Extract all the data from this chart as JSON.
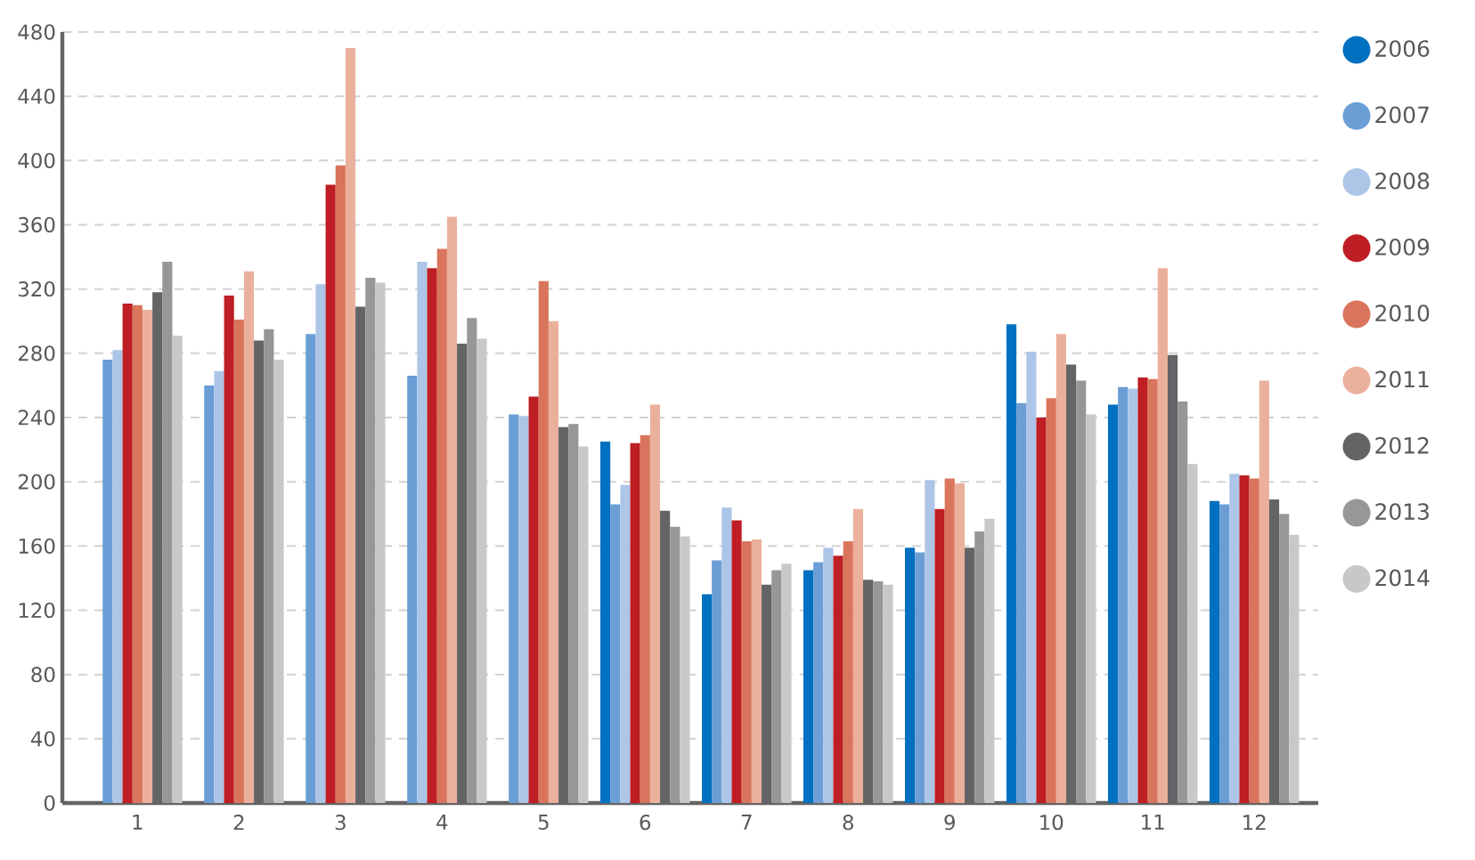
{
  "chart_data": {
    "type": "bar",
    "categories": [
      "1",
      "2",
      "3",
      "4",
      "5",
      "6",
      "7",
      "8",
      "9",
      "10",
      "11",
      "12"
    ],
    "series": [
      {
        "name": "2006",
        "color": "#0070c0",
        "values": [
          null,
          null,
          null,
          null,
          null,
          225,
          130,
          145,
          159,
          298,
          248,
          188
        ]
      },
      {
        "name": "2007",
        "color": "#6a9ed5",
        "values": [
          276,
          260,
          292,
          266,
          242,
          186,
          151,
          150,
          156,
          249,
          259,
          186
        ]
      },
      {
        "name": "2008",
        "color": "#adc5e7",
        "values": [
          282,
          269,
          323,
          337,
          241,
          198,
          184,
          159,
          201,
          281,
          258,
          205
        ]
      },
      {
        "name": "2009",
        "color": "#be1e24",
        "values": [
          311,
          316,
          385,
          333,
          253,
          224,
          176,
          154,
          183,
          240,
          265,
          204
        ]
      },
      {
        "name": "2010",
        "color": "#d9755c",
        "values": [
          310,
          301,
          397,
          345,
          325,
          229,
          163,
          163,
          202,
          252,
          264,
          202
        ]
      },
      {
        "name": "2011",
        "color": "#ebb09c",
        "values": [
          307,
          331,
          470,
          365,
          300,
          248,
          164,
          183,
          199,
          292,
          333,
          263
        ]
      },
      {
        "name": "2012",
        "color": "#646467",
        "values": [
          318,
          288,
          309,
          286,
          234,
          182,
          136,
          139,
          159,
          273,
          279,
          189
        ]
      },
      {
        "name": "2013",
        "color": "#97979a",
        "values": [
          337,
          295,
          327,
          302,
          236,
          172,
          145,
          138,
          169,
          263,
          250,
          180
        ]
      },
      {
        "name": "2014",
        "color": "#c8c8ca",
        "values": [
          291,
          276,
          324,
          289,
          222,
          166,
          149,
          136,
          177,
          242,
          211,
          167
        ]
      }
    ],
    "ylim": [
      0,
      480
    ],
    "yticks": [
      0,
      40,
      80,
      120,
      160,
      200,
      240,
      280,
      320,
      360,
      400,
      440,
      480
    ],
    "grid": "y",
    "legend": "right",
    "marker": "circle"
  }
}
